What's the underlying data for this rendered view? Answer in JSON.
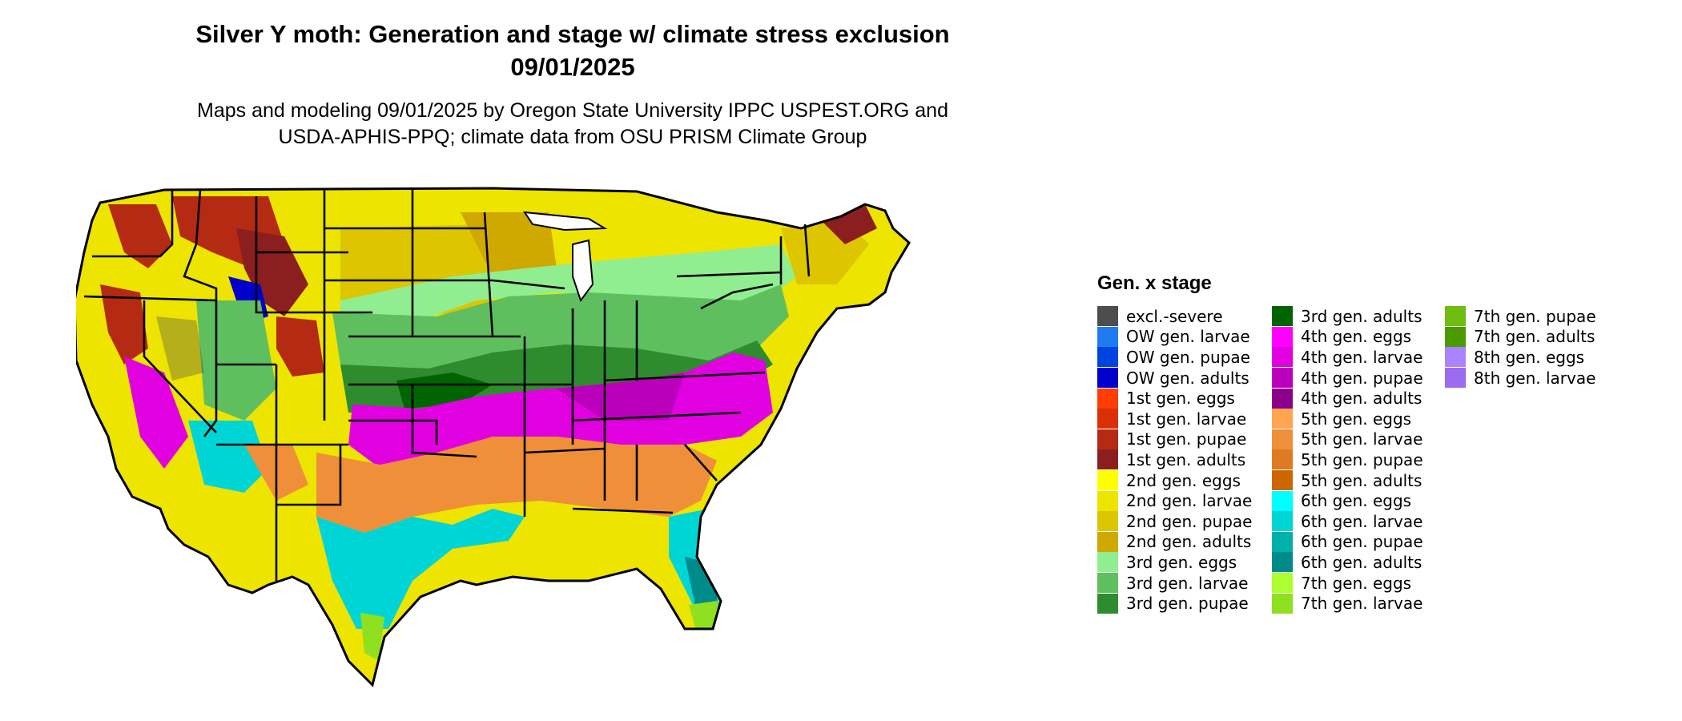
{
  "title": {
    "line1": "Silver Y moth: Generation and stage w/ climate stress exclusion",
    "line2": "09/01/2025"
  },
  "subtitle": {
    "line1": "Maps and modeling 09/01/2025 by Oregon State University IPPC USPEST.ORG and",
    "line2": "USDA-APHIS-PPQ; climate data from OSU PRISM Climate Group"
  },
  "legend": {
    "title": "Gen. x stage",
    "columns": [
      [
        {
          "label": "excl.-severe",
          "color": "#4d4d4d"
        },
        {
          "label": "OW gen. larvae",
          "color": "#1e7cf0"
        },
        {
          "label": "OW gen. pupae",
          "color": "#0044e0"
        },
        {
          "label": "OW gen. adults",
          "color": "#0000cc"
        },
        {
          "label": "1st gen. eggs",
          "color": "#ff3d00"
        },
        {
          "label": "1st gen. larvae",
          "color": "#d93008"
        },
        {
          "label": "1st gen. pupae",
          "color": "#b52a12"
        },
        {
          "label": "1st gen. adults",
          "color": "#8b1e1e"
        },
        {
          "label": "2nd gen. eggs",
          "color": "#ffff00"
        },
        {
          "label": "2nd gen. larvae",
          "color": "#ede400"
        },
        {
          "label": "2nd gen. pupae",
          "color": "#ddc500"
        },
        {
          "label": "2nd gen. adults",
          "color": "#cfa800"
        },
        {
          "label": "3rd gen. eggs",
          "color": "#90ee90"
        },
        {
          "label": "3rd gen. larvae",
          "color": "#5fbf5f"
        },
        {
          "label": "3rd gen. pupae",
          "color": "#2e8b2e"
        }
      ],
      [
        {
          "label": "3rd gen. adults",
          "color": "#006400"
        },
        {
          "label": "4th gen. eggs",
          "color": "#ff00ff"
        },
        {
          "label": "4th gen. larvae",
          "color": "#e000e0"
        },
        {
          "label": "4th gen. pupae",
          "color": "#bb00bb"
        },
        {
          "label": "4th gen. adults",
          "color": "#8b008b"
        },
        {
          "label": "5th gen. eggs",
          "color": "#ffa54f"
        },
        {
          "label": "5th gen. larvae",
          "color": "#ef8f3a"
        },
        {
          "label": "5th gen. pupae",
          "color": "#df7a22"
        },
        {
          "label": "5th gen. adults",
          "color": "#cd6600"
        },
        {
          "label": "6th gen. eggs",
          "color": "#00ffff"
        },
        {
          "label": "6th gen. larvae",
          "color": "#00d5d5"
        },
        {
          "label": "6th gen. pupae",
          "color": "#00b0aa"
        },
        {
          "label": "6th gen. adults",
          "color": "#008b8b"
        },
        {
          "label": "7th gen. eggs",
          "color": "#adff2f"
        },
        {
          "label": "7th gen. larvae",
          "color": "#8fe020"
        }
      ],
      [
        {
          "label": "7th gen. pupae",
          "color": "#6ebd10"
        },
        {
          "label": "7th gen. adults",
          "color": "#4a9a00"
        },
        {
          "label": "8th gen. eggs",
          "color": "#ab82ff"
        },
        {
          "label": "8th gen. larvae",
          "color": "#9b6bf0"
        }
      ]
    ]
  }
}
